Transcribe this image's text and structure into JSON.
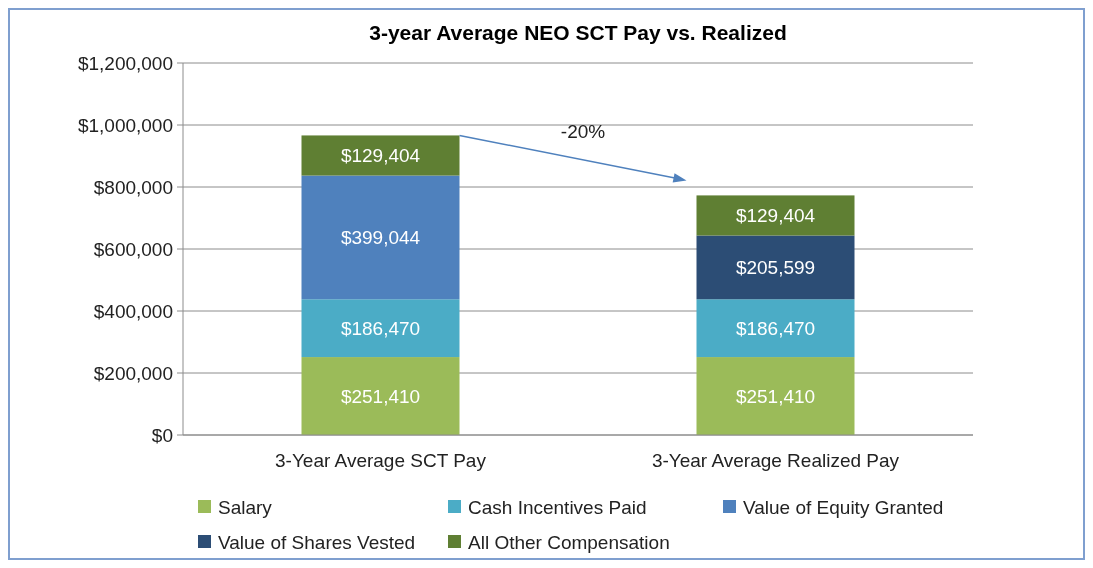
{
  "chart_data": {
    "type": "bar",
    "title": "3-year Average NEO SCT Pay vs. Realized",
    "categories": [
      "3-Year Average SCT Pay",
      "3-Year Average Realized Pay"
    ],
    "stacked": true,
    "grid": "y",
    "legend": "bottom",
    "ylim": [
      0,
      1200000
    ],
    "yticks": [
      {
        "value": 0,
        "label": "$0"
      },
      {
        "value": 200000,
        "label": "$200,000"
      },
      {
        "value": 400000,
        "label": "$400,000"
      },
      {
        "value": 600000,
        "label": "$600,000"
      },
      {
        "value": 800000,
        "label": "$800,000"
      },
      {
        "value": 1000000,
        "label": "$1,000,000"
      },
      {
        "value": 1200000,
        "label": "$1,200,000"
      }
    ],
    "series": [
      {
        "name": "Salary",
        "color": "#9bbb59",
        "values": [
          251410,
          251410
        ],
        "value_labels": [
          "$251,410",
          "$251,410"
        ]
      },
      {
        "name": "Cash Incentives Paid",
        "color": "#4bacc6",
        "values": [
          186470,
          186470
        ],
        "value_labels": [
          "$186,470",
          "$186,470"
        ]
      },
      {
        "name": "Value of Equity Granted",
        "color": "#4f81bd",
        "values": [
          399044,
          null
        ],
        "value_labels": [
          "$399,044",
          null
        ]
      },
      {
        "name": "Value of Shares Vested",
        "color": "#2c4d75",
        "values": [
          null,
          205599
        ],
        "value_labels": [
          null,
          "$205,599"
        ]
      },
      {
        "name": "All Other Compensation",
        "color": "#5f7f33",
        "values": [
          129404,
          129404
        ],
        "value_labels": [
          "$129,404",
          "$129,404"
        ]
      }
    ],
    "annotations": [
      "-20%"
    ]
  }
}
